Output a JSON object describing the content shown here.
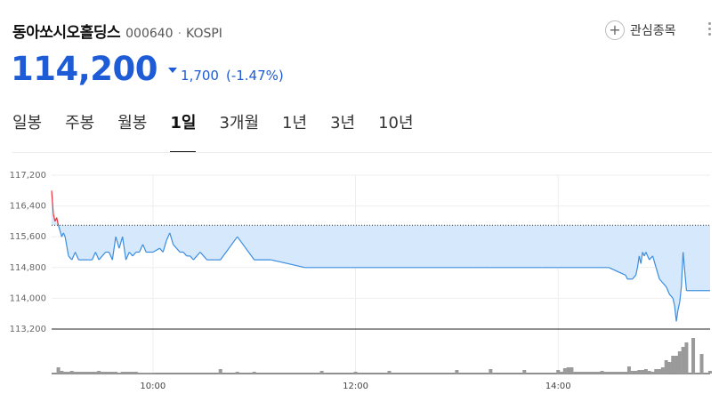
{
  "stock": {
    "name": "동아쏘시오홀딩스",
    "code": "000640",
    "separator": "·",
    "market": "KOSPI",
    "price": "114,200",
    "change": "1,700",
    "change_rate": "(-1.47%)",
    "direction": "down"
  },
  "actions": {
    "favorite_label": "관심종목",
    "favorite_icon": "plus-icon",
    "more_icon": "more-vertical-icon"
  },
  "tabs": [
    {
      "label": "일봉",
      "active": false
    },
    {
      "label": "주봉",
      "active": false
    },
    {
      "label": "월봉",
      "active": false
    },
    {
      "label": "1일",
      "active": true
    },
    {
      "label": "3개월",
      "active": false
    },
    {
      "label": "1년",
      "active": false
    },
    {
      "label": "3년",
      "active": false
    },
    {
      "label": "10년",
      "active": false
    }
  ],
  "colors": {
    "down": "#1e5bd6",
    "up": "#e8343a",
    "line": "#3b8de0",
    "fill": "#d6e8fb",
    "volume": "#9a9a9a"
  },
  "chart_data": {
    "type": "line",
    "title": "",
    "xlabel": "",
    "ylabel": "",
    "y_tick_labels": [
      "117,200",
      "116,400",
      "115,600",
      "114,800",
      "114,000",
      "113,200"
    ],
    "y_ticks": [
      117200,
      116400,
      115600,
      114800,
      114000,
      113200
    ],
    "ylim": [
      113200,
      117200
    ],
    "x_tick_labels": [
      "10:00",
      "12:00",
      "14:00"
    ],
    "x_ticks": [
      600,
      720,
      840
    ],
    "xlim": [
      540,
      930
    ],
    "previous_close": 115900,
    "grid": true,
    "series": [
      {
        "time": [
          540,
          541,
          542,
          543,
          544,
          546,
          547,
          548,
          550,
          552,
          554,
          556,
          558,
          560,
          562,
          564,
          566,
          568,
          570,
          572,
          574,
          576,
          578,
          580,
          582,
          584,
          586,
          588,
          590,
          592,
          594,
          596,
          598,
          600,
          604,
          606,
          608,
          610,
          612,
          614,
          616,
          618,
          620,
          622,
          624,
          626,
          628,
          630,
          632,
          634,
          636,
          638,
          640,
          650,
          660,
          670,
          680,
          690,
          700,
          710,
          720,
          730,
          740,
          750,
          760,
          770,
          780,
          790,
          800,
          810,
          820,
          830,
          840,
          850,
          860,
          870,
          880,
          881,
          882,
          884,
          886,
          887,
          888,
          889,
          890,
          891,
          892,
          893,
          894,
          896,
          898,
          900,
          902,
          904,
          906,
          908,
          909,
          910,
          911,
          912,
          913,
          914,
          916,
          920,
          925,
          930
        ],
        "price": [
          116800,
          116200,
          116000,
          116100,
          115900,
          115600,
          115700,
          115600,
          115100,
          115000,
          115200,
          115000,
          115000,
          115000,
          115000,
          115000,
          115200,
          115000,
          115100,
          115200,
          115200,
          115000,
          115600,
          115300,
          115600,
          115000,
          115200,
          115100,
          115200,
          115200,
          115400,
          115200,
          115200,
          115200,
          115300,
          115200,
          115500,
          115700,
          115400,
          115300,
          115200,
          115200,
          115100,
          115100,
          115000,
          115100,
          115200,
          115100,
          115000,
          115000,
          115000,
          115000,
          115000,
          115600,
          115000,
          115000,
          114900,
          114800,
          114800,
          114800,
          114800,
          114800,
          114800,
          114800,
          114800,
          114800,
          114800,
          114800,
          114800,
          114800,
          114800,
          114800,
          114800,
          114800,
          114800,
          114800,
          114600,
          114500,
          114500,
          114500,
          114600,
          114800,
          115100,
          114900,
          115200,
          115100,
          115200,
          115100,
          115000,
          115100,
          114800,
          114500,
          114400,
          114300,
          114100,
          114000,
          113800,
          113400,
          113700,
          113900,
          114300,
          115200,
          114200,
          114200,
          114200,
          114200
        ]
      }
    ],
    "volume": {
      "time": [
        544,
        546,
        548,
        550,
        552,
        554,
        556,
        558,
        560,
        562,
        564,
        566,
        568,
        570,
        572,
        574,
        576,
        578,
        580,
        582,
        584,
        586,
        588,
        590,
        592,
        594,
        596,
        598,
        600,
        640,
        650,
        660,
        700,
        720,
        740,
        780,
        800,
        820,
        840,
        842,
        844,
        846,
        848,
        850,
        852,
        854,
        856,
        858,
        860,
        862,
        864,
        866,
        868,
        870,
        872,
        874,
        876,
        878,
        880,
        882,
        884,
        886,
        888,
        890,
        892,
        894,
        896,
        898,
        900,
        902,
        904,
        906,
        908,
        910,
        912,
        914,
        916,
        920,
        925,
        930
      ],
      "bars": [
        7,
        3,
        2,
        2,
        3,
        2,
        2,
        2,
        2,
        2,
        2,
        2,
        3,
        2,
        2,
        2,
        2,
        2,
        1,
        2,
        2,
        2,
        2,
        2,
        1,
        1,
        1,
        1,
        1,
        5,
        2,
        2,
        3,
        2,
        3,
        4,
        5,
        4,
        4,
        2,
        6,
        7,
        7,
        2,
        2,
        2,
        2,
        2,
        2,
        2,
        2,
        3,
        2,
        2,
        2,
        2,
        2,
        2,
        2,
        8,
        3,
        3,
        4,
        4,
        5,
        3,
        2,
        5,
        5,
        7,
        15,
        13,
        20,
        20,
        25,
        30,
        35,
        40,
        22,
        3
      ]
    }
  }
}
